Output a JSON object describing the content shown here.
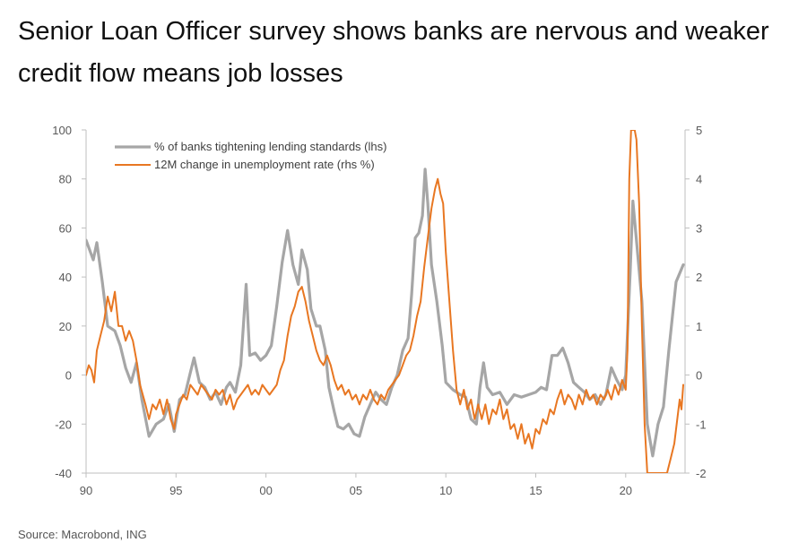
{
  "title": "Senior Loan Officer survey shows banks are nervous and weaker credit flow means job losses",
  "source": "Source: Macrobond, ING",
  "chart_data": {
    "type": "line",
    "title": "Senior Loan Officer survey shows banks are nervous and weaker credit flow means job losses",
    "xlabel": "",
    "ylabel_left": "",
    "ylabel_right": "",
    "x_range": [
      1990,
      2023.3
    ],
    "x_ticks": [
      1990,
      1995,
      2000,
      2005,
      2010,
      2015,
      2020
    ],
    "x_tick_labels": [
      "90",
      "95",
      "00",
      "05",
      "10",
      "15",
      "20"
    ],
    "y_left_range": [
      -40,
      100
    ],
    "y_left_ticks": [
      -40,
      -20,
      0,
      20,
      40,
      60,
      80,
      100
    ],
    "y_right_range": [
      -2,
      5
    ],
    "y_right_ticks": [
      -2,
      -1,
      0,
      1,
      2,
      3,
      4,
      5
    ],
    "grid": false,
    "legend_position": "top-left",
    "series": [
      {
        "name": "% of banks tightening lending standards (lhs)",
        "axis": "left",
        "color": "#a6a6a6",
        "points": [
          [
            1990.0,
            55
          ],
          [
            1990.4,
            47
          ],
          [
            1990.6,
            54
          ],
          [
            1990.9,
            38
          ],
          [
            1991.2,
            20
          ],
          [
            1991.6,
            18
          ],
          [
            1991.9,
            12
          ],
          [
            1992.2,
            3
          ],
          [
            1992.5,
            -3
          ],
          [
            1992.8,
            5
          ],
          [
            1993.1,
            -10
          ],
          [
            1993.5,
            -25
          ],
          [
            1993.9,
            -20
          ],
          [
            1994.3,
            -18
          ],
          [
            1994.6,
            -12
          ],
          [
            1994.9,
            -23
          ],
          [
            1995.2,
            -10
          ],
          [
            1995.5,
            -8
          ],
          [
            1995.8,
            1
          ],
          [
            1996.0,
            7
          ],
          [
            1996.3,
            -3
          ],
          [
            1996.6,
            -5
          ],
          [
            1996.9,
            -10
          ],
          [
            1997.2,
            -7
          ],
          [
            1997.5,
            -12
          ],
          [
            1997.8,
            -5
          ],
          [
            1998.0,
            -3
          ],
          [
            1998.3,
            -7
          ],
          [
            1998.6,
            4
          ],
          [
            1998.9,
            37
          ],
          [
            1999.1,
            8
          ],
          [
            1999.4,
            9
          ],
          [
            1999.7,
            6
          ],
          [
            2000.0,
            8
          ],
          [
            2000.3,
            12
          ],
          [
            2000.6,
            28
          ],
          [
            2000.9,
            46
          ],
          [
            2001.2,
            59
          ],
          [
            2001.5,
            45
          ],
          [
            2001.8,
            37
          ],
          [
            2002.0,
            51
          ],
          [
            2002.3,
            43
          ],
          [
            2002.5,
            27
          ],
          [
            2002.8,
            20
          ],
          [
            2003.0,
            20
          ],
          [
            2003.3,
            10
          ],
          [
            2003.5,
            -5
          ],
          [
            2003.8,
            -15
          ],
          [
            2004.0,
            -21
          ],
          [
            2004.3,
            -22
          ],
          [
            2004.6,
            -20
          ],
          [
            2004.9,
            -24
          ],
          [
            2005.2,
            -25
          ],
          [
            2005.5,
            -17
          ],
          [
            2005.8,
            -12
          ],
          [
            2006.1,
            -7
          ],
          [
            2006.4,
            -10
          ],
          [
            2006.7,
            -12
          ],
          [
            2007.0,
            -5
          ],
          [
            2007.3,
            0
          ],
          [
            2007.6,
            10
          ],
          [
            2007.9,
            15
          ],
          [
            2008.1,
            33
          ],
          [
            2008.3,
            56
          ],
          [
            2008.5,
            58
          ],
          [
            2008.7,
            65
          ],
          [
            2008.85,
            84
          ],
          [
            2009.0,
            70
          ],
          [
            2009.2,
            45
          ],
          [
            2009.5,
            30
          ],
          [
            2009.8,
            12
          ],
          [
            2010.0,
            -3
          ],
          [
            2010.4,
            -6
          ],
          [
            2010.8,
            -8
          ],
          [
            2011.1,
            -9
          ],
          [
            2011.4,
            -18
          ],
          [
            2011.7,
            -20
          ],
          [
            2011.9,
            -5
          ],
          [
            2012.1,
            5
          ],
          [
            2012.3,
            -5
          ],
          [
            2012.6,
            -8
          ],
          [
            2013.0,
            -7
          ],
          [
            2013.4,
            -12
          ],
          [
            2013.8,
            -8
          ],
          [
            2014.2,
            -9
          ],
          [
            2014.6,
            -8
          ],
          [
            2015.0,
            -7
          ],
          [
            2015.3,
            -5
          ],
          [
            2015.6,
            -6
          ],
          [
            2015.9,
            8
          ],
          [
            2016.2,
            8
          ],
          [
            2016.5,
            11
          ],
          [
            2016.8,
            5
          ],
          [
            2017.1,
            -3
          ],
          [
            2017.4,
            -5
          ],
          [
            2017.7,
            -7
          ],
          [
            2018.0,
            -10
          ],
          [
            2018.3,
            -8
          ],
          [
            2018.6,
            -12
          ],
          [
            2018.9,
            -8
          ],
          [
            2019.2,
            3
          ],
          [
            2019.5,
            -2
          ],
          [
            2019.8,
            -6
          ],
          [
            2020.0,
            0
          ],
          [
            2020.25,
            42
          ],
          [
            2020.4,
            71
          ],
          [
            2020.6,
            55
          ],
          [
            2020.9,
            30
          ],
          [
            2021.2,
            -20
          ],
          [
            2021.5,
            -33
          ],
          [
            2021.8,
            -20
          ],
          [
            2022.1,
            -13
          ],
          [
            2022.4,
            10
          ],
          [
            2022.8,
            38
          ],
          [
            2023.2,
            45
          ]
        ]
      },
      {
        "name": "12M change in unemployment rate (rhs %)",
        "axis": "right",
        "color": "#e87722",
        "points": [
          [
            1990.0,
            0
          ],
          [
            1990.15,
            0.2
          ],
          [
            1990.3,
            0.1
          ],
          [
            1990.45,
            -0.15
          ],
          [
            1990.6,
            0.5
          ],
          [
            1990.8,
            0.8
          ],
          [
            1991.0,
            1.1
          ],
          [
            1991.2,
            1.6
          ],
          [
            1991.4,
            1.3
          ],
          [
            1991.6,
            1.7
          ],
          [
            1991.8,
            1.0
          ],
          [
            1992.0,
            1.0
          ],
          [
            1992.2,
            0.7
          ],
          [
            1992.4,
            0.9
          ],
          [
            1992.6,
            0.7
          ],
          [
            1992.8,
            0.3
          ],
          [
            1993.0,
            -0.2
          ],
          [
            1993.3,
            -0.6
          ],
          [
            1993.5,
            -0.9
          ],
          [
            1993.7,
            -0.6
          ],
          [
            1993.9,
            -0.7
          ],
          [
            1994.1,
            -0.5
          ],
          [
            1994.3,
            -0.8
          ],
          [
            1994.5,
            -0.5
          ],
          [
            1994.7,
            -0.9
          ],
          [
            1994.9,
            -1.1
          ],
          [
            1995.0,
            -0.8
          ],
          [
            1995.2,
            -0.6
          ],
          [
            1995.4,
            -0.4
          ],
          [
            1995.6,
            -0.5
          ],
          [
            1995.8,
            -0.2
          ],
          [
            1996.0,
            -0.3
          ],
          [
            1996.2,
            -0.4
          ],
          [
            1996.4,
            -0.2
          ],
          [
            1996.6,
            -0.3
          ],
          [
            1996.8,
            -0.4
          ],
          [
            1997.0,
            -0.5
          ],
          [
            1997.2,
            -0.3
          ],
          [
            1997.4,
            -0.4
          ],
          [
            1997.6,
            -0.3
          ],
          [
            1997.8,
            -0.6
          ],
          [
            1998.0,
            -0.4
          ],
          [
            1998.2,
            -0.7
          ],
          [
            1998.4,
            -0.5
          ],
          [
            1998.6,
            -0.4
          ],
          [
            1998.8,
            -0.3
          ],
          [
            1999.0,
            -0.2
          ],
          [
            1999.2,
            -0.4
          ],
          [
            1999.4,
            -0.3
          ],
          [
            1999.6,
            -0.4
          ],
          [
            1999.8,
            -0.2
          ],
          [
            2000.0,
            -0.3
          ],
          [
            2000.2,
            -0.4
          ],
          [
            2000.4,
            -0.3
          ],
          [
            2000.6,
            -0.2
          ],
          [
            2000.8,
            0.1
          ],
          [
            2001.0,
            0.3
          ],
          [
            2001.2,
            0.8
          ],
          [
            2001.4,
            1.2
          ],
          [
            2001.6,
            1.4
          ],
          [
            2001.8,
            1.7
          ],
          [
            2002.0,
            1.8
          ],
          [
            2002.2,
            1.5
          ],
          [
            2002.4,
            1.1
          ],
          [
            2002.6,
            0.8
          ],
          [
            2002.8,
            0.5
          ],
          [
            2003.0,
            0.3
          ],
          [
            2003.2,
            0.2
          ],
          [
            2003.4,
            0.4
          ],
          [
            2003.6,
            0.2
          ],
          [
            2003.8,
            -0.1
          ],
          [
            2004.0,
            -0.3
          ],
          [
            2004.2,
            -0.2
          ],
          [
            2004.4,
            -0.4
          ],
          [
            2004.6,
            -0.3
          ],
          [
            2004.8,
            -0.5
          ],
          [
            2005.0,
            -0.4
          ],
          [
            2005.2,
            -0.6
          ],
          [
            2005.4,
            -0.4
          ],
          [
            2005.6,
            -0.5
          ],
          [
            2005.8,
            -0.3
          ],
          [
            2006.0,
            -0.5
          ],
          [
            2006.2,
            -0.6
          ],
          [
            2006.4,
            -0.4
          ],
          [
            2006.6,
            -0.5
          ],
          [
            2006.8,
            -0.3
          ],
          [
            2007.0,
            -0.2
          ],
          [
            2007.2,
            -0.1
          ],
          [
            2007.4,
            0.0
          ],
          [
            2007.6,
            0.2
          ],
          [
            2007.8,
            0.4
          ],
          [
            2008.0,
            0.5
          ],
          [
            2008.2,
            0.8
          ],
          [
            2008.4,
            1.2
          ],
          [
            2008.6,
            1.5
          ],
          [
            2008.8,
            2.2
          ],
          [
            2009.0,
            2.8
          ],
          [
            2009.2,
            3.4
          ],
          [
            2009.4,
            3.8
          ],
          [
            2009.55,
            4.0
          ],
          [
            2009.7,
            3.7
          ],
          [
            2009.85,
            3.5
          ],
          [
            2010.0,
            2.5
          ],
          [
            2010.2,
            1.5
          ],
          [
            2010.4,
            0.5
          ],
          [
            2010.6,
            -0.3
          ],
          [
            2010.8,
            -0.6
          ],
          [
            2011.0,
            -0.3
          ],
          [
            2011.2,
            -0.7
          ],
          [
            2011.4,
            -0.5
          ],
          [
            2011.6,
            -0.9
          ],
          [
            2011.8,
            -0.6
          ],
          [
            2012.0,
            -0.9
          ],
          [
            2012.2,
            -0.6
          ],
          [
            2012.4,
            -1.0
          ],
          [
            2012.6,
            -0.7
          ],
          [
            2012.8,
            -0.8
          ],
          [
            2013.0,
            -0.5
          ],
          [
            2013.2,
            -0.9
          ],
          [
            2013.4,
            -0.7
          ],
          [
            2013.6,
            -1.1
          ],
          [
            2013.8,
            -1.0
          ],
          [
            2014.0,
            -1.3
          ],
          [
            2014.2,
            -1.0
          ],
          [
            2014.4,
            -1.4
          ],
          [
            2014.6,
            -1.2
          ],
          [
            2014.8,
            -1.5
          ],
          [
            2015.0,
            -1.1
          ],
          [
            2015.2,
            -1.2
          ],
          [
            2015.4,
            -0.9
          ],
          [
            2015.6,
            -1.0
          ],
          [
            2015.8,
            -0.7
          ],
          [
            2016.0,
            -0.8
          ],
          [
            2016.2,
            -0.5
          ],
          [
            2016.4,
            -0.3
          ],
          [
            2016.6,
            -0.6
          ],
          [
            2016.8,
            -0.4
          ],
          [
            2017.0,
            -0.5
          ],
          [
            2017.2,
            -0.7
          ],
          [
            2017.4,
            -0.4
          ],
          [
            2017.6,
            -0.6
          ],
          [
            2017.8,
            -0.3
          ],
          [
            2018.0,
            -0.5
          ],
          [
            2018.2,
            -0.4
          ],
          [
            2018.4,
            -0.6
          ],
          [
            2018.6,
            -0.4
          ],
          [
            2018.8,
            -0.5
          ],
          [
            2019.0,
            -0.3
          ],
          [
            2019.2,
            -0.5
          ],
          [
            2019.4,
            -0.2
          ],
          [
            2019.6,
            -0.4
          ],
          [
            2019.8,
            -0.1
          ],
          [
            2020.0,
            -0.3
          ],
          [
            2020.1,
            0.5
          ],
          [
            2020.2,
            4.0
          ],
          [
            2020.3,
            5.0
          ],
          [
            2020.5,
            5.0
          ],
          [
            2020.6,
            4.8
          ],
          [
            2020.75,
            3.5
          ],
          [
            2020.9,
            1.0
          ],
          [
            2021.05,
            -1.0
          ],
          [
            2021.2,
            -2.0
          ],
          [
            2021.4,
            -2.0
          ],
          [
            2021.8,
            -2.0
          ],
          [
            2022.0,
            -2.0
          ],
          [
            2022.3,
            -2.0
          ],
          [
            2022.5,
            -1.7
          ],
          [
            2022.7,
            -1.4
          ],
          [
            2022.9,
            -0.8
          ],
          [
            2023.0,
            -0.5
          ],
          [
            2023.1,
            -0.7
          ],
          [
            2023.2,
            -0.2
          ]
        ]
      }
    ]
  }
}
